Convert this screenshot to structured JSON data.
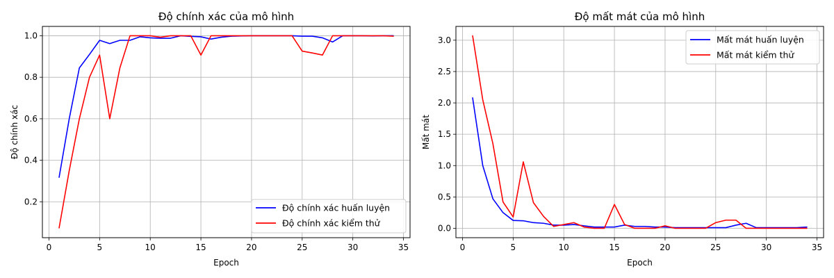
{
  "chart_data": [
    {
      "type": "line",
      "title": "Độ chính xác của mô hình",
      "xlabel": "Epoch",
      "ylabel": "Độ chính xác",
      "xlim": [
        -0.65,
        35.65
      ],
      "ylim": [
        0.027,
        1.045
      ],
      "xticks": [
        0,
        5,
        10,
        15,
        20,
        25,
        30,
        35
      ],
      "yticks": [
        0.2,
        0.4,
        0.6,
        0.8,
        1.0
      ],
      "ytick_labels": [
        "0.2",
        "0.4",
        "0.6",
        "0.8",
        "1.0"
      ],
      "grid": true,
      "legend_position": "lower-right",
      "x": [
        1,
        2,
        3,
        4,
        5,
        6,
        7,
        8,
        9,
        10,
        11,
        12,
        13,
        14,
        15,
        16,
        17,
        18,
        19,
        20,
        21,
        22,
        23,
        24,
        25,
        26,
        27,
        28,
        29,
        30,
        31,
        32,
        33,
        34
      ],
      "series": [
        {
          "name": "Độ chính xác huấn luyện",
          "color": "#0000ff",
          "values": [
            0.318,
            0.6,
            0.845,
            0.91,
            0.978,
            0.962,
            0.978,
            0.978,
            0.995,
            0.99,
            0.988,
            0.988,
            1.0,
            0.997,
            0.995,
            0.984,
            0.993,
            0.998,
            0.999,
            1.0,
            1.0,
            1.0,
            1.0,
            1.0,
            0.998,
            0.998,
            0.99,
            0.97,
            1.0,
            1.0,
            1.0,
            0.999,
            1.0,
            1.0
          ]
        },
        {
          "name": "Độ chính xác kiểm thử",
          "color": "#ff0000",
          "values": [
            0.074,
            0.35,
            0.6,
            0.8,
            0.907,
            0.6,
            0.845,
            1.0,
            1.0,
            1.0,
            0.993,
            1.0,
            1.0,
            1.0,
            0.907,
            1.0,
            1.0,
            1.0,
            1.0,
            1.0,
            1.0,
            1.0,
            1.0,
            1.0,
            0.926,
            0.917,
            0.907,
            1.0,
            1.0,
            1.0,
            1.0,
            1.0,
            1.0,
            0.998
          ]
        }
      ]
    },
    {
      "type": "line",
      "title": "Độ mất mát của mô hình",
      "xlabel": "Epoch",
      "ylabel": "Mất mát",
      "xlim": [
        -0.65,
        35.65
      ],
      "ylim": [
        -0.15,
        3.22
      ],
      "xticks": [
        0,
        5,
        10,
        15,
        20,
        25,
        30,
        35
      ],
      "yticks": [
        0.0,
        0.5,
        1.0,
        1.5,
        2.0,
        2.5,
        3.0
      ],
      "ytick_labels": [
        "0.0",
        "0.5",
        "1.0",
        "1.5",
        "2.0",
        "2.5",
        "3.0"
      ],
      "grid": true,
      "legend_position": "upper-right",
      "x": [
        1,
        2,
        3,
        4,
        5,
        6,
        7,
        8,
        9,
        10,
        11,
        12,
        13,
        14,
        15,
        16,
        17,
        18,
        19,
        20,
        21,
        22,
        23,
        24,
        25,
        26,
        27,
        28,
        29,
        30,
        31,
        32,
        33,
        34
      ],
      "series": [
        {
          "name": "Mất mát huấn luyện",
          "color": "#0000ff",
          "values": [
            2.08,
            1.0,
            0.47,
            0.25,
            0.125,
            0.12,
            0.09,
            0.08,
            0.05,
            0.05,
            0.06,
            0.04,
            0.02,
            0.02,
            0.02,
            0.05,
            0.03,
            0.03,
            0.02,
            0.02,
            0.01,
            0.01,
            0.01,
            0.01,
            0.01,
            0.01,
            0.05,
            0.08,
            0.01,
            0.01,
            0.01,
            0.01,
            0.01,
            0.02
          ]
        },
        {
          "name": "Mất mát kiểm thử",
          "color": "#ff0000",
          "values": [
            3.07,
            2.05,
            1.35,
            0.42,
            0.18,
            1.06,
            0.41,
            0.19,
            0.03,
            0.06,
            0.09,
            0.02,
            0.0,
            0.0,
            0.38,
            0.06,
            0.0,
            0.0,
            0.0,
            0.04,
            0.0,
            0.0,
            0.0,
            0.0,
            0.09,
            0.13,
            0.13,
            0.0,
            0.0,
            0.0,
            0.0,
            0.0,
            0.0,
            0.0
          ]
        }
      ]
    }
  ]
}
